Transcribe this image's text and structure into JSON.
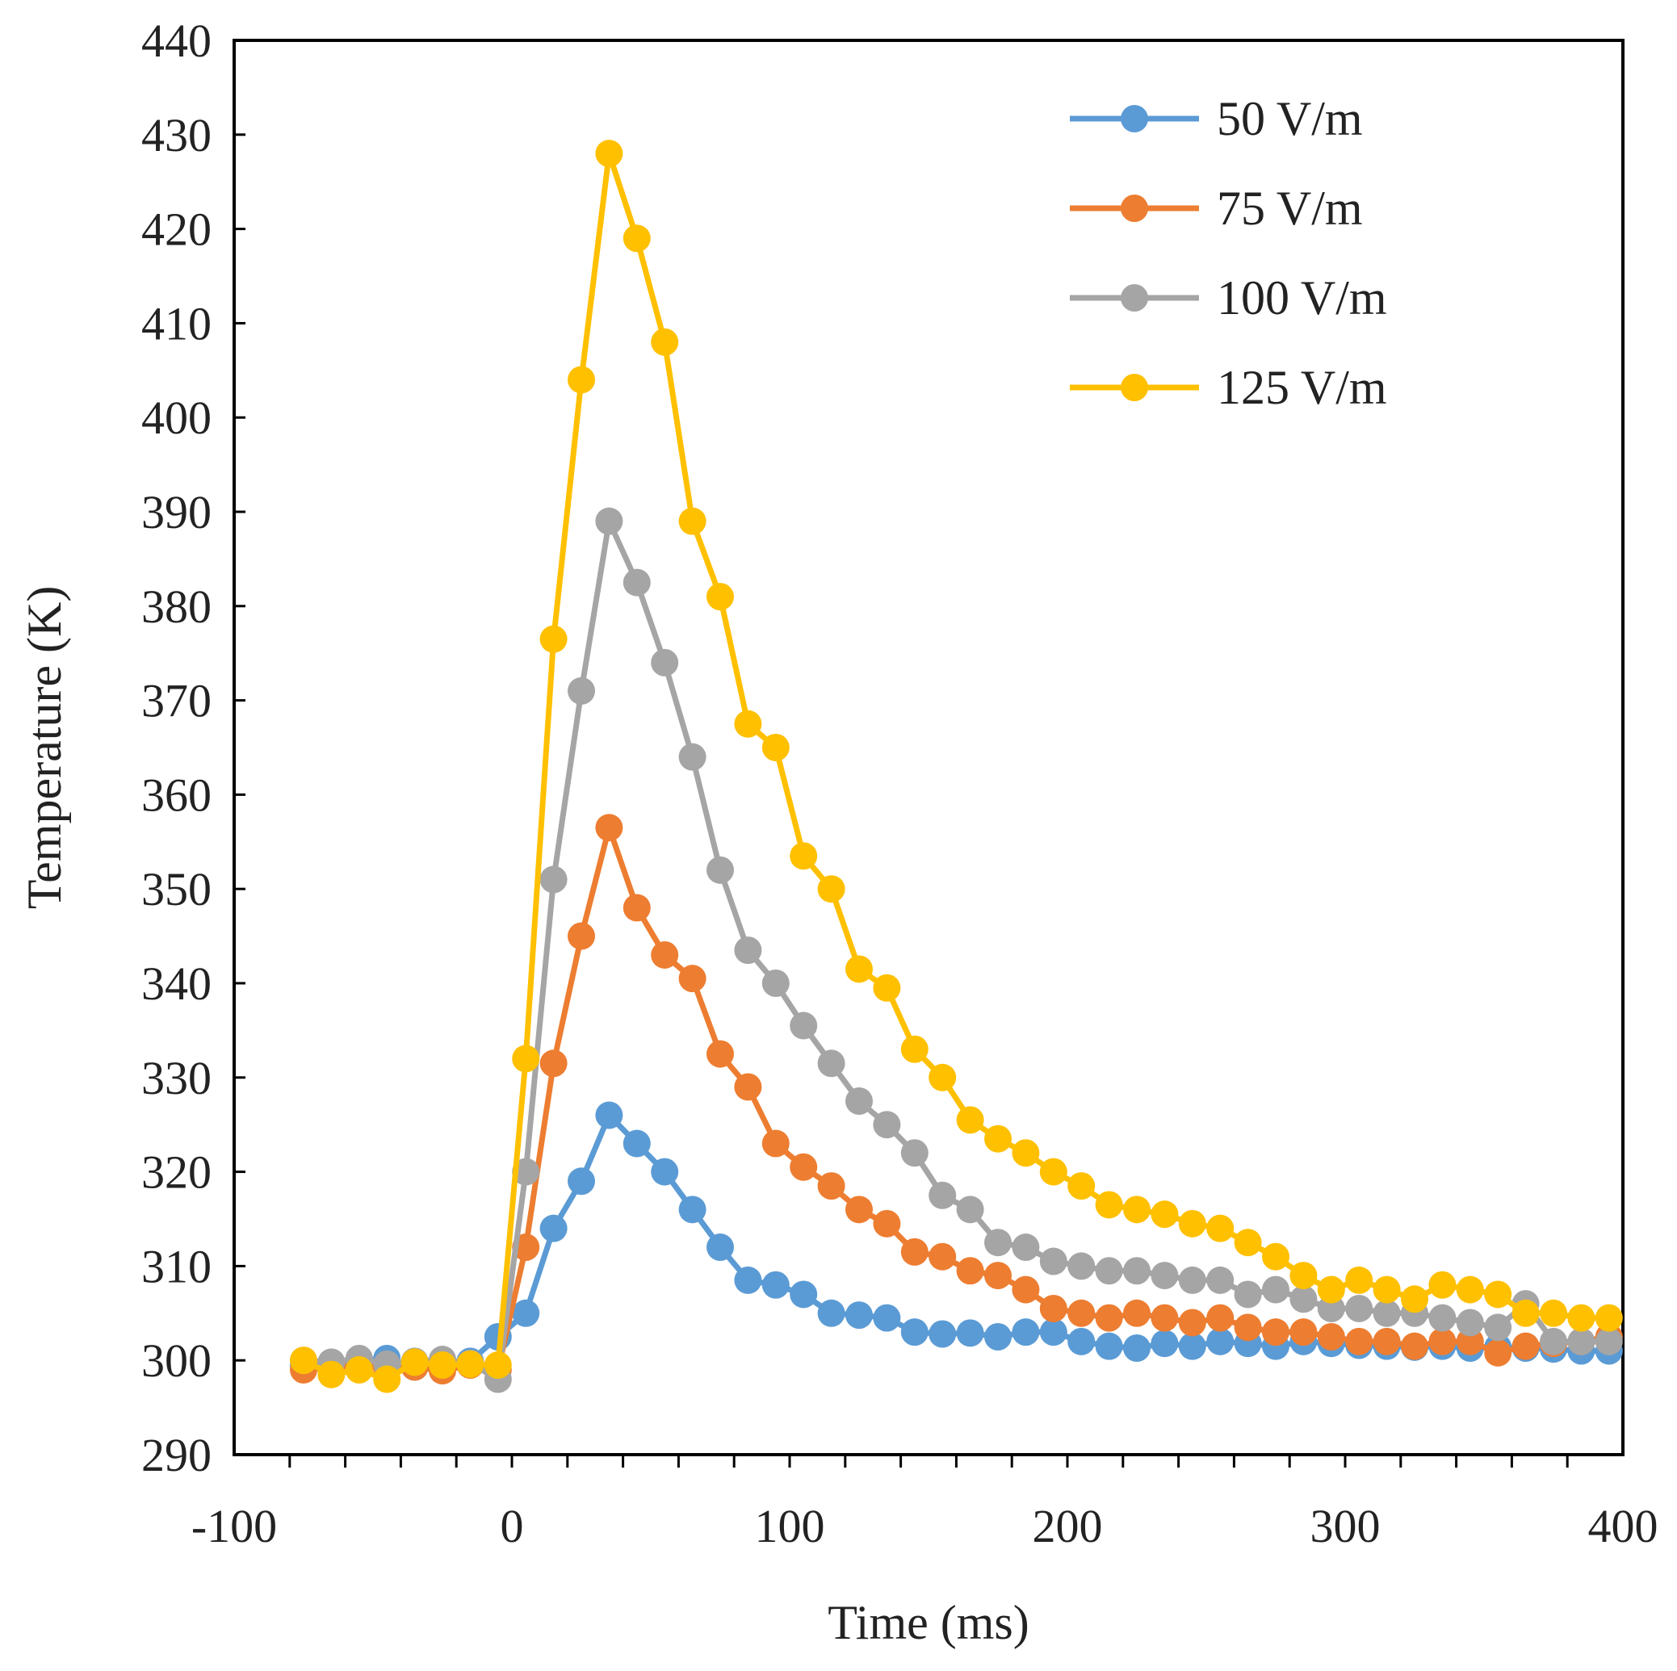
{
  "chart_data": {
    "type": "line",
    "title": "",
    "xlabel": "Time (ms)",
    "ylabel": "Temperature (K)",
    "xlim": [
      -100,
      400
    ],
    "ylim": [
      290,
      440
    ],
    "x_ticks": [
      -100,
      0,
      100,
      200,
      300,
      400
    ],
    "y_ticks": [
      290,
      300,
      310,
      320,
      330,
      340,
      350,
      360,
      370,
      380,
      390,
      400,
      410,
      420,
      430,
      440
    ],
    "x_tick_labels": [
      "-100",
      "0",
      "100",
      "200",
      "300",
      "400"
    ],
    "y_tick_labels": [
      "290",
      "300",
      "310",
      "320",
      "330",
      "340",
      "350",
      "360",
      "370",
      "380",
      "390",
      "400",
      "410",
      "420",
      "430",
      "440"
    ],
    "grid": false,
    "legend_position": "top-right",
    "series": [
      {
        "name": "50 V/m",
        "color": "#5B9BD5",
        "x": [
          -75,
          -65,
          -55,
          -45,
          -35,
          -25,
          -15,
          -5,
          5,
          15,
          25,
          35,
          45,
          55,
          65,
          75,
          85,
          95,
          105,
          115,
          125,
          135,
          145,
          155,
          165,
          175,
          185,
          195,
          205,
          215,
          225,
          235,
          245,
          255,
          265,
          275,
          285,
          295,
          305,
          315,
          325,
          335,
          345,
          355,
          365,
          375,
          385,
          395
        ],
        "y": [
          299.5,
          299.8,
          300.0,
          300.2,
          299.3,
          299.6,
          299.9,
          302.5,
          305.0,
          314.0,
          319.0,
          326.0,
          323.0,
          320.0,
          316.0,
          312.0,
          308.5,
          308.0,
          307.0,
          305.0,
          304.8,
          304.5,
          303.0,
          302.8,
          302.9,
          302.5,
          303.0,
          303.0,
          302.0,
          301.5,
          301.3,
          301.8,
          301.5,
          302.0,
          301.8,
          301.5,
          302.0,
          301.8,
          301.6,
          301.5,
          301.4,
          301.5,
          301.3,
          301.4,
          301.3,
          301.2,
          301.0,
          301.0
        ]
      },
      {
        "name": "75 V/m",
        "color": "#ED7D31",
        "x": [
          -75,
          -65,
          -55,
          -45,
          -35,
          -25,
          -15,
          -5,
          5,
          15,
          25,
          35,
          45,
          55,
          65,
          75,
          85,
          95,
          105,
          115,
          125,
          135,
          145,
          155,
          165,
          175,
          185,
          195,
          205,
          215,
          225,
          235,
          245,
          255,
          265,
          275,
          285,
          295,
          305,
          315,
          325,
          335,
          345,
          355,
          365,
          375,
          385,
          395
        ],
        "y": [
          299.0,
          299.2,
          299.6,
          299.0,
          299.3,
          298.9,
          299.5,
          299.0,
          312.0,
          331.5,
          345.0,
          356.5,
          348.0,
          343.0,
          340.5,
          332.5,
          329.0,
          323.0,
          320.5,
          318.5,
          316.0,
          314.5,
          311.5,
          311.0,
          309.5,
          309.0,
          307.5,
          305.5,
          305.0,
          304.5,
          305.0,
          304.5,
          304.0,
          304.5,
          303.5,
          303.0,
          303.0,
          302.5,
          302.0,
          302.0,
          301.5,
          302.0,
          302.0,
          300.8,
          301.5,
          301.8,
          302.0,
          302.5
        ]
      },
      {
        "name": "100 V/m",
        "color": "#A5A5A5",
        "x": [
          -75,
          -65,
          -55,
          -45,
          -35,
          -25,
          -15,
          -5,
          5,
          15,
          25,
          35,
          45,
          55,
          65,
          75,
          85,
          95,
          105,
          115,
          125,
          135,
          145,
          155,
          165,
          175,
          185,
          195,
          205,
          215,
          225,
          235,
          245,
          255,
          265,
          275,
          285,
          295,
          305,
          315,
          325,
          335,
          345,
          355,
          365,
          375,
          385,
          395
        ],
        "y": [
          300.0,
          299.8,
          300.2,
          299.6,
          299.9,
          300.1,
          299.7,
          298.0,
          320.0,
          351.0,
          371.0,
          389.0,
          382.5,
          374.0,
          364.0,
          352.0,
          343.5,
          340.0,
          335.5,
          331.5,
          327.5,
          325.0,
          322.0,
          317.5,
          316.0,
          312.5,
          312.0,
          310.5,
          310.0,
          309.5,
          309.5,
          309.0,
          308.5,
          308.5,
          307.0,
          307.5,
          306.5,
          305.5,
          305.5,
          305.0,
          305.0,
          304.5,
          304.0,
          303.5,
          306.0,
          302.0,
          302.0,
          302.0
        ]
      },
      {
        "name": "125 V/m",
        "color": "#FFC000",
        "x": [
          -75,
          -65,
          -55,
          -45,
          -35,
          -25,
          -15,
          -5,
          5,
          15,
          25,
          35,
          45,
          55,
          65,
          75,
          85,
          95,
          105,
          115,
          125,
          135,
          145,
          155,
          165,
          175,
          185,
          195,
          205,
          215,
          225,
          235,
          245,
          255,
          265,
          275,
          285,
          295,
          305,
          315,
          325,
          335,
          345,
          355,
          365,
          375,
          385,
          395
        ],
        "y": [
          300.0,
          298.5,
          299.0,
          298.0,
          299.8,
          299.5,
          299.6,
          299.5,
          332.0,
          376.5,
          404.0,
          428.0,
          419.0,
          408.0,
          389.0,
          381.0,
          367.5,
          365.0,
          353.5,
          350.0,
          341.5,
          339.5,
          333.0,
          330.0,
          325.5,
          323.5,
          322.0,
          320.0,
          318.5,
          316.5,
          316.0,
          315.5,
          314.5,
          314.0,
          312.5,
          311.0,
          309.0,
          307.5,
          308.5,
          307.5,
          306.5,
          308.0,
          307.5,
          307.0,
          305.0,
          305.0,
          304.5,
          304.5
        ]
      }
    ]
  }
}
